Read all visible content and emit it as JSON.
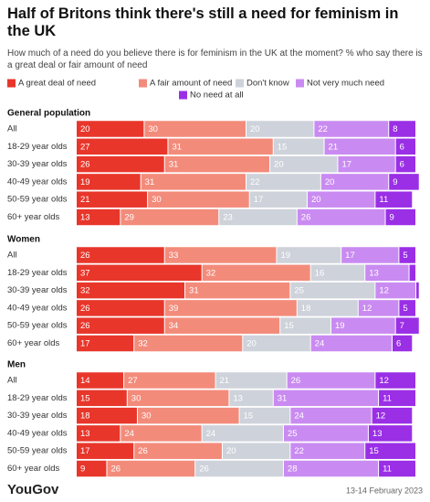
{
  "chart_data": {
    "type": "bar",
    "stacked": true,
    "orientation": "horizontal",
    "title": "Half of Britons think there's still a need for feminism in the UK",
    "subtitle": "How much of a need do you believe there is for feminism in the UK at the moment? % who say there is a great deal or fair amount of need",
    "xlim": [
      0,
      100
    ],
    "series": [
      {
        "name": "A great deal of need",
        "color": "#e8362b"
      },
      {
        "name": "A fair amount of need",
        "color": "#f38b7b"
      },
      {
        "name": "Don't know",
        "color": "#ced2da"
      },
      {
        "name": "Not very much need",
        "color": "#c98bf1"
      },
      {
        "name": "No need at all",
        "color": "#9a2fe6"
      }
    ],
    "groups": [
      {
        "title": "General population",
        "categories": [
          "All",
          "18-29 year olds",
          "30-39 year olds",
          "40-49 year olds",
          "50-59 year olds",
          "60+ year olds"
        ],
        "rows": [
          [
            20,
            30,
            20,
            22,
            8
          ],
          [
            27,
            31,
            15,
            21,
            6
          ],
          [
            26,
            31,
            20,
            17,
            6
          ],
          [
            19,
            31,
            22,
            20,
            9
          ],
          [
            21,
            30,
            17,
            20,
            11
          ],
          [
            13,
            29,
            23,
            26,
            9
          ]
        ]
      },
      {
        "title": "Women",
        "categories": [
          "All",
          "18-29 year olds",
          "30-39 year olds",
          "40-49 year olds",
          "50-59 year olds",
          "60+ year olds"
        ],
        "rows": [
          [
            26,
            33,
            19,
            17,
            5
          ],
          [
            37,
            32,
            16,
            13,
            2
          ],
          [
            32,
            31,
            25,
            12,
            1
          ],
          [
            26,
            39,
            18,
            12,
            5
          ],
          [
            26,
            34,
            15,
            19,
            7
          ],
          [
            17,
            32,
            20,
            24,
            6
          ]
        ]
      },
      {
        "title": "Men",
        "categories": [
          "All",
          "18-29 year olds",
          "30-39 year olds",
          "40-49 year olds",
          "50-59 year olds",
          "60+ year olds"
        ],
        "rows": [
          [
            14,
            27,
            21,
            26,
            12
          ],
          [
            15,
            30,
            13,
            31,
            11
          ],
          [
            18,
            30,
            15,
            24,
            12
          ],
          [
            13,
            24,
            24,
            25,
            13
          ],
          [
            17,
            26,
            20,
            22,
            15
          ],
          [
            9,
            26,
            26,
            28,
            11
          ]
        ]
      }
    ],
    "source": "YouGov",
    "date": "13-14 February 2023"
  }
}
